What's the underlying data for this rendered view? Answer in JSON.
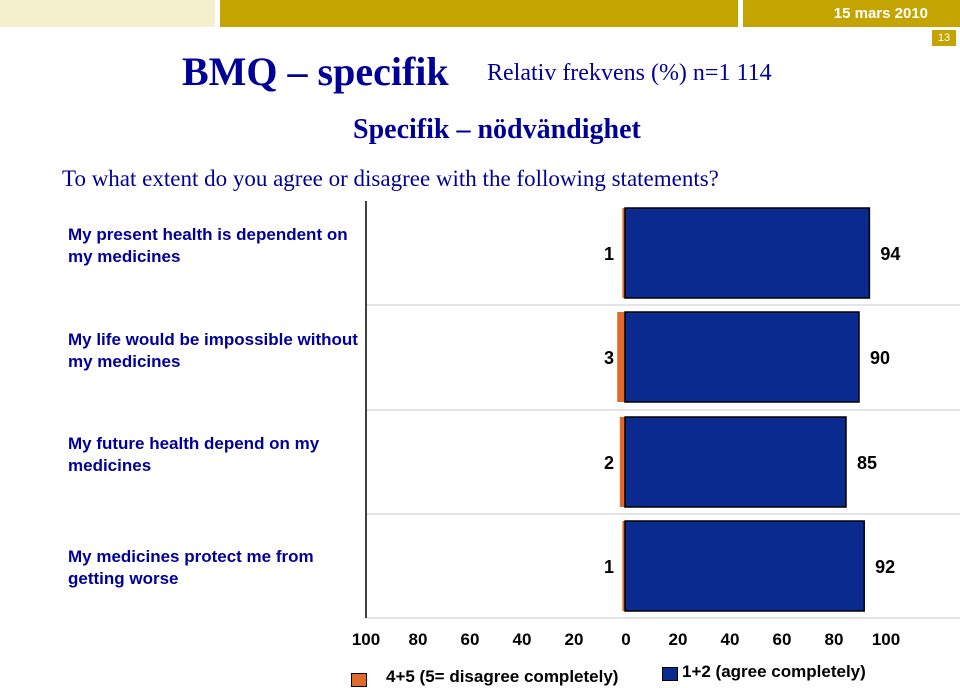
{
  "header": {
    "date": "15 mars 2010",
    "slide_number": "13"
  },
  "title": "BMQ – specifik",
  "subtitle": "Relativ frekvens (%) n=1 114",
  "section_title": "Specifik – nödvändighet",
  "question": "To what extent do you agree or disagree with the following statements?",
  "colors": {
    "disagree": "#e06a2c",
    "agree": "#0b2a8f",
    "brand": "#c4a400",
    "text": "#000099"
  },
  "chart_data": {
    "type": "bar",
    "orientation": "horizontal",
    "categories": [
      "My present health is dependent on my medicines",
      "My life would be impossible without my medicines",
      "My future health depend on my medicines",
      "My medicines protect me from getting worse"
    ],
    "series": [
      {
        "name": "4+5 (5= disagree completely)",
        "values": [
          1,
          3,
          2,
          1
        ],
        "direction": "left"
      },
      {
        "name": "1+2 (agree completely)",
        "values": [
          94,
          90,
          85,
          92
        ],
        "direction": "right"
      }
    ],
    "data_labels": {
      "disagree": [
        "1",
        "3",
        "2",
        "1"
      ],
      "agree": [
        "94",
        "90",
        "85",
        "92"
      ]
    },
    "x_ticks": [
      "100",
      "80",
      "60",
      "40",
      "20",
      "0",
      "20",
      "40",
      "60",
      "80",
      "100"
    ],
    "xlim": [
      -100,
      100
    ],
    "legend_position": "bottom"
  }
}
